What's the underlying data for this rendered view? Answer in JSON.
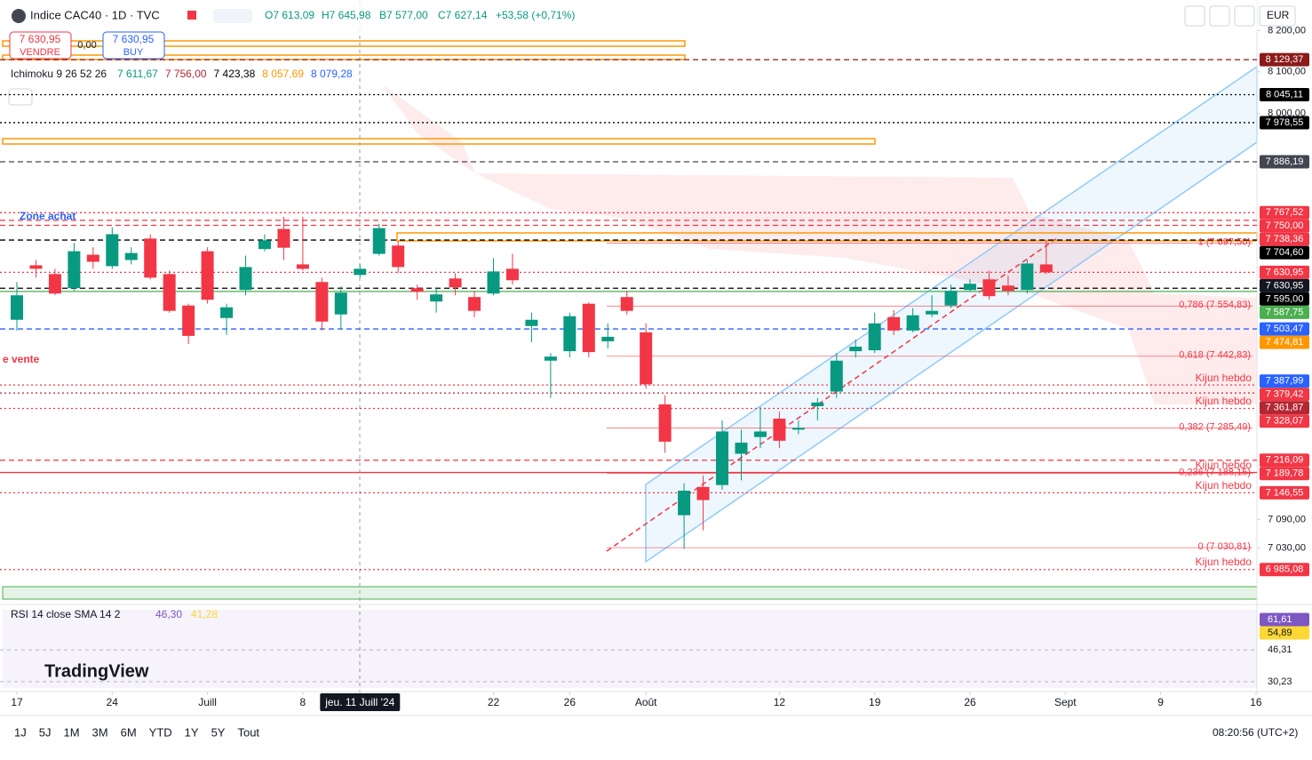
{
  "header": {
    "title": "Indice CAC40 · 1D · TVC",
    "open": "O7 613,09",
    "high": "H7 645,98",
    "low": "B7 577,00",
    "close": "C7 627,14",
    "change": "+53,58 (+0,71%)",
    "sell_price": "7 630,95",
    "sell": "VENDRE",
    "spread": "0,00",
    "buy_price": "7 630,95",
    "buy": "BUY",
    "currency": "EUR",
    "ichimoku": "Ichimoku 9 26 52 26",
    "ichimoku_values": [
      "7 611,67",
      "7 756,00",
      "7 423,38",
      "8 057,69",
      "8 079,28"
    ],
    "logo": "TradingView"
  },
  "toolbar": {
    "ranges": [
      "1J",
      "5J",
      "1M",
      "3M",
      "6M",
      "YTD",
      "1Y",
      "5Y",
      "Tout"
    ],
    "clock": "08:20:56 (UTC+2)"
  },
  "chart_data": {
    "type": "candlestick",
    "log_scale": true,
    "grid": false,
    "up_color": "#089981",
    "down_color": "#f23645",
    "ylim": [
      6913,
      8275
    ],
    "yticks": [
      {
        "value": 8200,
        "label": "8 200,00"
      },
      {
        "value": 8100,
        "label": "8 100,00"
      },
      {
        "value": 8000,
        "label": "8 000,00"
      },
      {
        "value": 7090,
        "label": "7 090,00"
      },
      {
        "value": 7030,
        "label": "7 030,00"
      }
    ],
    "xticks": [
      {
        "value": 0,
        "label": "17"
      },
      {
        "value": 5,
        "label": "24"
      },
      {
        "value": 10,
        "label": "Juill"
      },
      {
        "value": 15,
        "label": "8"
      },
      {
        "value": 18,
        "label": "jeu. 11 Juill '24"
      },
      {
        "value": 25,
        "label": "22"
      },
      {
        "value": 29,
        "label": "26"
      },
      {
        "value": 33,
        "label": "Août"
      },
      {
        "value": 40,
        "label": "12"
      },
      {
        "value": 45,
        "label": "19"
      },
      {
        "value": 50,
        "label": "26"
      },
      {
        "value": 55,
        "label": "Sept"
      },
      {
        "value": 60,
        "label": "9"
      },
      {
        "value": 65,
        "label": "16"
      }
    ],
    "open": [
      7524,
      7647,
      7627,
      7595,
      7671,
      7645,
      7659,
      7708,
      7627,
      7556,
      7679,
      7528,
      7591,
      7684,
      7730,
      7649,
      7609,
      7536,
      7625,
      7673,
      7692,
      7595,
      7565,
      7617,
      7575,
      7583,
      7639,
      7510,
      7433,
      7454,
      7560,
      7476,
      7575,
      7496,
      7337,
      7099,
      7159,
      7163,
      7230,
      7266,
      7306,
      7282,
      7333,
      7365,
      7454,
      7456,
      7530,
      7500,
      7536,
      7556,
      7591,
      7615,
      7601,
      7591,
      7649
    ],
    "high": [
      7609,
      7659,
      7639,
      7698,
      7688,
      7734,
      7688,
      7718,
      7635,
      7560,
      7688,
      7560,
      7669,
      7718,
      7758,
      7758,
      7619,
      7599,
      7649,
      7742,
      7702,
      7603,
      7595,
      7629,
      7589,
      7663,
      7673,
      7540,
      7450,
      7540,
      7563,
      7516,
      7589,
      7516,
      7357,
      7167,
      7183,
      7302,
      7282,
      7331,
      7321,
      7302,
      7351,
      7450,
      7480,
      7540,
      7546,
      7550,
      7579,
      7603,
      7615,
      7635,
      7623,
      7659,
      7706
    ],
    "low": [
      7500,
      7619,
      7579,
      7589,
      7639,
      7639,
      7649,
      7615,
      7540,
      7470,
      7560,
      7490,
      7579,
      7679,
      7659,
      7635,
      7500,
      7504,
      7619,
      7669,
      7629,
      7569,
      7540,
      7579,
      7530,
      7579,
      7603,
      7474,
      7351,
      7440,
      7440,
      7460,
      7536,
      7371,
      7232,
      7028,
      7067,
      7153,
      7173,
      7242,
      7242,
      7272,
      7302,
      7351,
      7440,
      7450,
      7490,
      7496,
      7530,
      7550,
      7587,
      7569,
      7579,
      7583,
      7627
    ],
    "close": [
      7579,
      7639,
      7583,
      7679,
      7655,
      7718,
      7675,
      7619,
      7544,
      7488,
      7569,
      7552,
      7643,
      7704,
      7687,
      7639,
      7520,
      7585,
      7639,
      7732,
      7643,
      7587,
      7581,
      7597,
      7544,
      7633,
      7613,
      7524,
      7442,
      7532,
      7452,
      7486,
      7544,
      7381,
      7256,
      7151,
      7131,
      7278,
      7254,
      7278,
      7258,
      7286,
      7341,
      7433,
      7464,
      7516,
      7500,
      7534,
      7544,
      7589,
      7605,
      7577,
      7589,
      7651,
      7631
    ],
    "levels": [
      {
        "value": 8129.37,
        "label": "8 129,37",
        "color": "#8b1a1a",
        "line": "dashed"
      },
      {
        "value": 8045.11,
        "label": "8 045,11",
        "color": "#000000",
        "line": "dotted"
      },
      {
        "value": 7978.55,
        "label": "7 978,55",
        "color": "#000000",
        "line": "dotted"
      },
      {
        "value": 7886.19,
        "label": "7 886,19",
        "color": "#434651",
        "line": "dashed"
      },
      {
        "value": 7767.52,
        "label": "7 767,52",
        "color": "#f23645",
        "line": "dotted"
      },
      {
        "value": 7750.0,
        "label": "7 750,00",
        "color": "#f23645",
        "line": "dashed"
      },
      {
        "value": 7738.36,
        "label": "7 738,36",
        "color": "#f23645",
        "line": "dashed"
      },
      {
        "value": 7704.6,
        "label": "7 704,60",
        "color": "#000000",
        "line": "dashed"
      },
      {
        "value": 7630.95,
        "label": "7 630,95",
        "color": "#f23645",
        "line": "dotted"
      },
      {
        "value": 7630.95,
        "label": "7 630,95",
        "color": "#131722",
        "line": "none"
      },
      {
        "value": 7595.0,
        "label": "7 595,00",
        "color": "#000000",
        "line": "dashed"
      },
      {
        "value": 7587.75,
        "label": "7 587,75",
        "color": "#4caf50",
        "line": "solid"
      },
      {
        "value": 7503.47,
        "label": "7 503,47",
        "color": "#2962ff",
        "line": "dashed"
      },
      {
        "value": 7474.81,
        "label": "7 474,81",
        "color": "#ff9800",
        "line": "none"
      },
      {
        "value": 7387.99,
        "label": "7 387,99",
        "color": "#2962ff",
        "line": "none"
      },
      {
        "value": 7379.42,
        "label": "7 379,42",
        "color": "#f23645",
        "line": "dotted"
      },
      {
        "value": 7361.87,
        "label": "7 361,87",
        "color": "#b22833",
        "line": "dotted"
      },
      {
        "value": 7328.07,
        "label": "7 328,07",
        "color": "#f23645",
        "line": "dotted"
      },
      {
        "value": 7216.09,
        "label": "7 216,09",
        "color": "#f23645",
        "line": "dashed"
      },
      {
        "value": 7189.78,
        "label": "7 189,78",
        "color": "#f23645",
        "line": "solid"
      },
      {
        "value": 7146.55,
        "label": "7 146,55",
        "color": "#f23645",
        "line": "dotted"
      },
      {
        "value": 6985.08,
        "label": "6 985,08",
        "color": "#f23645",
        "line": "dotted"
      }
    ],
    "fib": [
      {
        "value": 7697.5,
        "label": "1 (7 697,50)"
      },
      {
        "value": 7554.83,
        "label": "0,786 (7 554,83)"
      },
      {
        "value": 7442.83,
        "label": "0,618 (7 442,83)"
      },
      {
        "value": 7285.49,
        "label": "0,382 (7 285,49)"
      },
      {
        "value": 7188.15,
        "label": "0,236 (7 188,15)"
      },
      {
        "value": 7030.81,
        "label": "0 (7 030,81)"
      }
    ],
    "annotations": [
      "Zone achat",
      "e vente",
      "Kijun hebdo",
      "Kijun hebdo",
      "Kijun hebdo",
      "Kijun hebdo",
      "Kijun hebdo"
    ],
    "rsi": {
      "label": "RSI 14 close SMA 14 2",
      "values": [
        "46,30",
        "41,28"
      ],
      "ylim": [
        26.6,
        67.0
      ],
      "ticks": [
        {
          "value": 61.61,
          "label": "61,61",
          "color": "#7e57c2"
        },
        {
          "value": 54.89,
          "label": "54,89",
          "color": "#fdd835"
        },
        {
          "value": 46.31,
          "label": "46,31"
        },
        {
          "value": 30.23,
          "label": "30,23"
        }
      ]
    }
  }
}
